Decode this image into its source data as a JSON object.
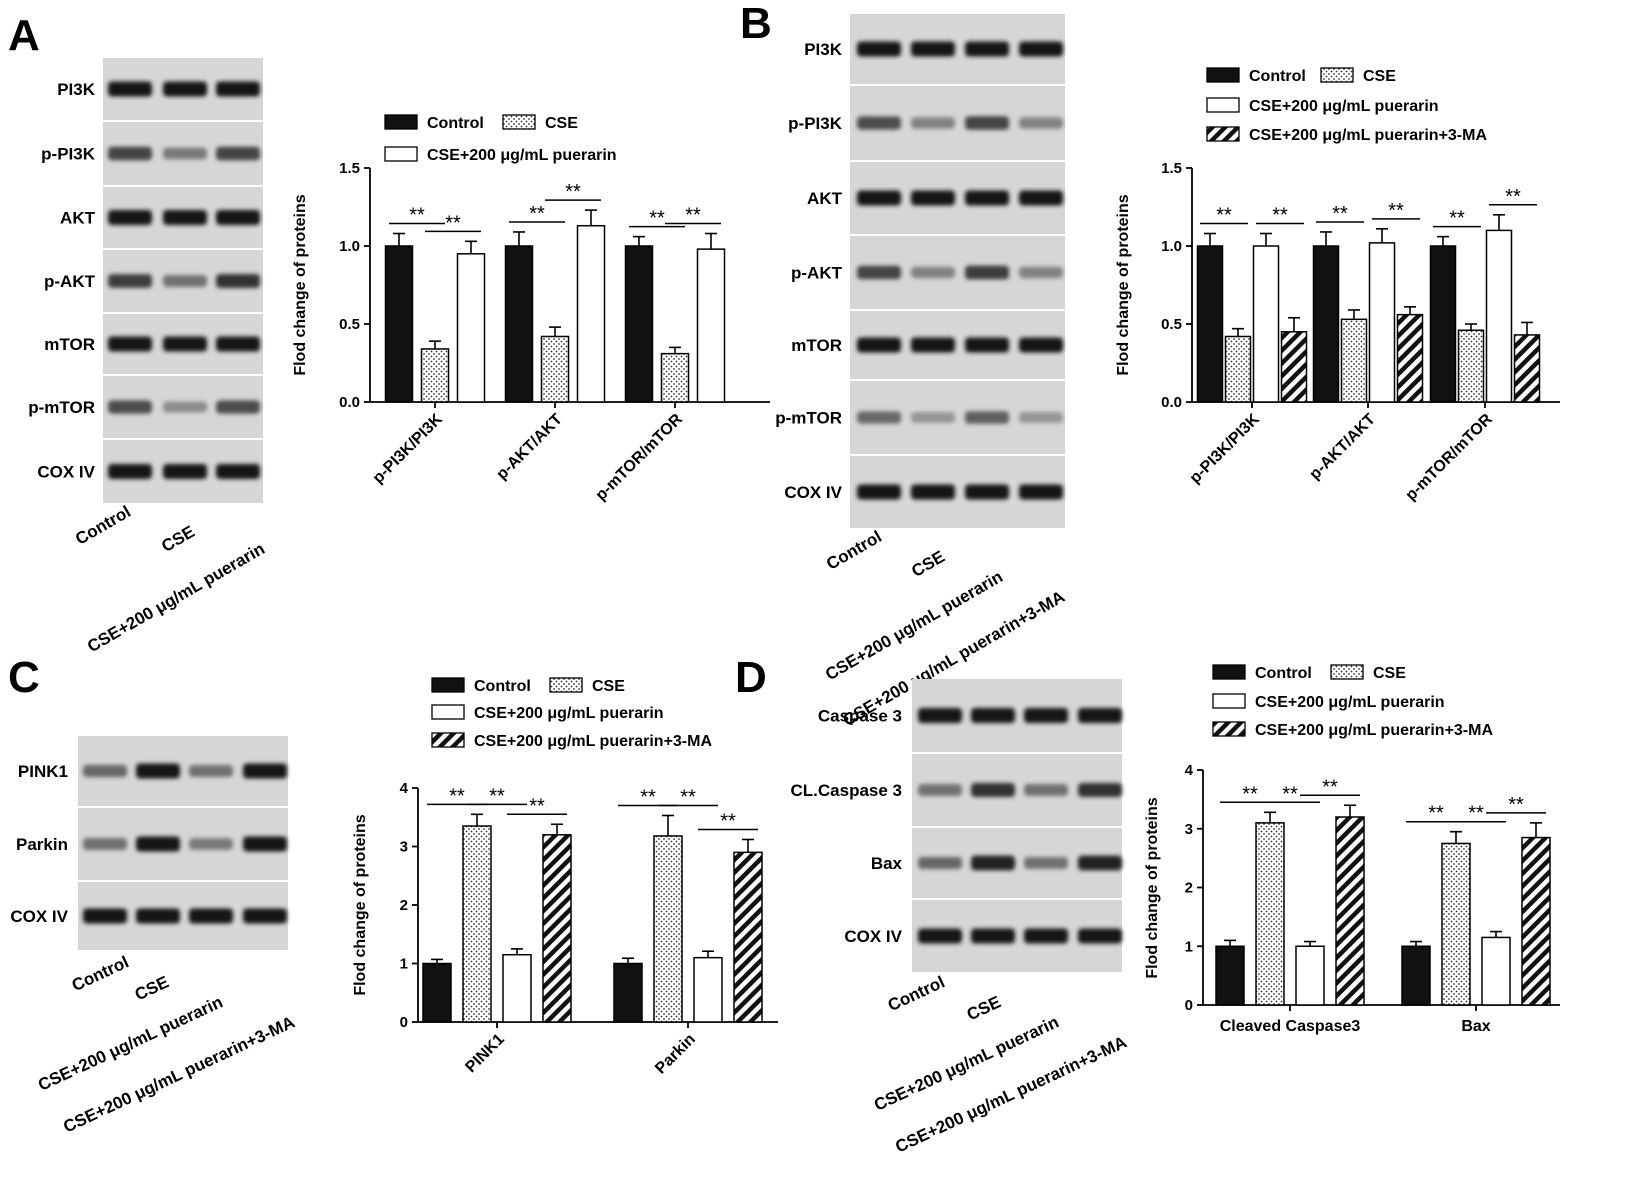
{
  "colors": {
    "control": "#111111",
    "cse": "#ffffff",
    "puerarin": "#ffffff",
    "puerarin_3ma": "#ffffff",
    "axis": "#000000",
    "blot_bg": "#d6d6d6",
    "band": "#1f1f1f"
  },
  "panels": [
    {
      "id": "A",
      "letter": "A",
      "blot": {
        "proteins": [
          "PI3K",
          "p-PI3K",
          "AKT",
          "p-AKT",
          "mTOR",
          "p-mTOR",
          "COX IV"
        ],
        "lanes": [
          "Control",
          "CSE",
          "CSE+200 μg/mL puerarin"
        ],
        "intensities": [
          [
            1,
            1,
            1
          ],
          [
            0.75,
            0.45,
            0.75
          ],
          [
            1,
            1,
            1
          ],
          [
            0.8,
            0.5,
            0.85
          ],
          [
            1,
            1,
            1
          ],
          [
            0.7,
            0.35,
            0.7
          ],
          [
            1,
            1,
            1
          ]
        ]
      },
      "legend": [
        "Control",
        "CSE",
        "CSE+200 μg/mL puerarin"
      ],
      "chart_data": {
        "type": "bar",
        "ylabel": "Flod change of  proteins",
        "ylim": [
          0,
          1.5
        ],
        "yticks": [
          "0.0",
          "0.5",
          "1.0",
          "1.5"
        ],
        "categories": [
          "p-PI3K/PI3K",
          "p-AKT/AKT",
          "p-mTOR/mTOR"
        ],
        "series": [
          {
            "name": "Control",
            "pattern": "solid",
            "values": [
              1.0,
              1.0,
              1.0
            ],
            "errors": [
              0.08,
              0.09,
              0.06
            ]
          },
          {
            "name": "CSE",
            "pattern": "dots",
            "values": [
              0.34,
              0.42,
              0.31
            ],
            "errors": [
              0.05,
              0.06,
              0.04
            ]
          },
          {
            "name": "CSE+200 μg/mL puerarin",
            "pattern": "open",
            "values": [
              0.95,
              1.13,
              0.98
            ],
            "errors": [
              0.08,
              0.1,
              0.1
            ]
          }
        ],
        "significance": [
          {
            "category": 0,
            "from": 0,
            "to": 1,
            "label": "**"
          },
          {
            "category": 0,
            "from": 1,
            "to": 2,
            "label": "**"
          },
          {
            "category": 1,
            "from": 0,
            "to": 1,
            "label": "**"
          },
          {
            "category": 1,
            "from": 1,
            "to": 2,
            "label": "**"
          },
          {
            "category": 2,
            "from": 0,
            "to": 1,
            "label": "**"
          },
          {
            "category": 2,
            "from": 1,
            "to": 2,
            "label": "**"
          }
        ]
      }
    },
    {
      "id": "B",
      "letter": "B",
      "blot": {
        "proteins": [
          "PI3K",
          "p-PI3K",
          "AKT",
          "p-AKT",
          "mTOR",
          "p-mTOR",
          "COX IV"
        ],
        "lanes": [
          "Control",
          "CSE",
          "CSE+200 μg/mL puerarin",
          "CSE+200 μg/mL puerarin+3-MA"
        ],
        "intensities": [
          [
            1,
            1,
            1,
            1
          ],
          [
            0.7,
            0.4,
            0.75,
            0.4
          ],
          [
            1,
            1,
            1,
            1
          ],
          [
            0.75,
            0.4,
            0.8,
            0.4
          ],
          [
            1,
            1,
            1,
            1
          ],
          [
            0.55,
            0.3,
            0.6,
            0.3
          ],
          [
            1,
            1,
            1,
            1
          ]
        ]
      },
      "legend": [
        "Control",
        "CSE",
        "CSE+200 μg/mL puerarin",
        "CSE+200 μg/mL puerarin+3-MA"
      ],
      "chart_data": {
        "type": "bar",
        "ylabel": "Flod change of  proteins",
        "ylim": [
          0,
          1.5
        ],
        "yticks": [
          "0.0",
          "0.5",
          "1.0",
          "1.5"
        ],
        "categories": [
          "p-PI3K/PI3K",
          "p-AKT/AKT",
          "p-mTOR/mTOR"
        ],
        "series": [
          {
            "name": "Control",
            "pattern": "solid",
            "values": [
              1.0,
              1.0,
              1.0
            ],
            "errors": [
              0.08,
              0.09,
              0.06
            ]
          },
          {
            "name": "CSE",
            "pattern": "dots",
            "values": [
              0.42,
              0.53,
              0.46
            ],
            "errors": [
              0.05,
              0.06,
              0.04
            ]
          },
          {
            "name": "CSE+200 μg/mL puerarin",
            "pattern": "open",
            "values": [
              1.0,
              1.02,
              1.1
            ],
            "errors": [
              0.08,
              0.09,
              0.1
            ]
          },
          {
            "name": "CSE+200 μg/mL puerarin+3-MA",
            "pattern": "hatch",
            "values": [
              0.45,
              0.56,
              0.43
            ],
            "errors": [
              0.09,
              0.05,
              0.08
            ]
          }
        ],
        "significance": [
          {
            "category": 0,
            "from": 0,
            "to": 1,
            "label": "**"
          },
          {
            "category": 0,
            "from": 2,
            "to": 3,
            "label": "**"
          },
          {
            "category": 1,
            "from": 0,
            "to": 1,
            "label": "**"
          },
          {
            "category": 1,
            "from": 2,
            "to": 3,
            "label": "**"
          },
          {
            "category": 2,
            "from": 0,
            "to": 1,
            "label": "**"
          },
          {
            "category": 2,
            "from": 2,
            "to": 3,
            "label": "**"
          }
        ]
      }
    },
    {
      "id": "C",
      "letter": "C",
      "blot": {
        "proteins": [
          "PINK1",
          "Parkin",
          "COX IV"
        ],
        "lanes": [
          "Control",
          "CSE",
          "CSE+200 μg/mL puerarin",
          "CSE+200 μg/mL puerarin+3-MA"
        ],
        "intensities": [
          [
            0.55,
            1,
            0.5,
            1
          ],
          [
            0.5,
            1,
            0.45,
            1
          ],
          [
            1,
            1,
            1,
            1
          ]
        ]
      },
      "legend": [
        "Control",
        "CSE",
        "CSE+200 μg/mL puerarin",
        "CSE+200 μg/mL puerarin+3-MA"
      ],
      "chart_data": {
        "type": "bar",
        "ylabel": "Flod change of  proteins",
        "ylim": [
          0,
          4
        ],
        "yticks": [
          "0",
          "1",
          "2",
          "3",
          "4"
        ],
        "categories": [
          "PINK1",
          "Parkin"
        ],
        "series": [
          {
            "name": "Control",
            "pattern": "solid",
            "values": [
              1.0,
              1.0
            ],
            "errors": [
              0.07,
              0.09
            ]
          },
          {
            "name": "CSE",
            "pattern": "dots",
            "values": [
              3.35,
              3.18
            ],
            "errors": [
              0.2,
              0.35
            ]
          },
          {
            "name": "CSE+200 μg/mL puerarin",
            "pattern": "open",
            "values": [
              1.15,
              1.1
            ],
            "errors": [
              0.1,
              0.11
            ]
          },
          {
            "name": "CSE+200 μg/mL puerarin+3-MA",
            "pattern": "hatch",
            "values": [
              3.2,
              2.9
            ],
            "errors": [
              0.18,
              0.22
            ]
          }
        ],
        "significance": [
          {
            "category": 0,
            "from": 0,
            "to": 1,
            "label": "**"
          },
          {
            "category": 0,
            "from": 1,
            "to": 2,
            "label": "**"
          },
          {
            "category": 0,
            "from": 2,
            "to": 3,
            "label": "**"
          },
          {
            "category": 1,
            "from": 0,
            "to": 1,
            "label": "**"
          },
          {
            "category": 1,
            "from": 1,
            "to": 2,
            "label": "**"
          },
          {
            "category": 1,
            "from": 2,
            "to": 3,
            "label": "**"
          }
        ]
      }
    },
    {
      "id": "D",
      "letter": "D",
      "blot": {
        "proteins": [
          "Caspase 3",
          "CL.Caspase 3",
          "Bax",
          "COX IV"
        ],
        "lanes": [
          "Control",
          "CSE",
          "CSE+200 μg/mL puerarin",
          "CSE+200 μg/mL puerarin+3-MA"
        ],
        "intensities": [
          [
            1,
            1,
            1,
            1
          ],
          [
            0.5,
            0.85,
            0.5,
            0.85
          ],
          [
            0.55,
            0.95,
            0.5,
            0.95
          ],
          [
            1,
            1,
            1,
            1
          ]
        ]
      },
      "legend": [
        "Control",
        "CSE",
        "CSE+200 μg/mL puerarin",
        "CSE+200 μg/mL puerarin+3-MA"
      ],
      "chart_data": {
        "type": "bar",
        "ylabel": "Flod change of proteins",
        "ylim": [
          0,
          4
        ],
        "yticks": [
          "0",
          "1",
          "2",
          "3",
          "4"
        ],
        "categories": [
          "Cleaved Caspase3",
          "Bax"
        ],
        "series": [
          {
            "name": "Control",
            "pattern": "solid",
            "values": [
              1.0,
              1.0
            ],
            "errors": [
              0.1,
              0.08
            ]
          },
          {
            "name": "CSE",
            "pattern": "dots",
            "values": [
              3.1,
              2.75
            ],
            "errors": [
              0.18,
              0.2
            ]
          },
          {
            "name": "CSE+200 μg/mL puerarin",
            "pattern": "open",
            "values": [
              1.0,
              1.15
            ],
            "errors": [
              0.08,
              0.1
            ]
          },
          {
            "name": "CSE+200 μg/mL puerarin+3-MA",
            "pattern": "hatch",
            "values": [
              3.2,
              2.85
            ],
            "errors": [
              0.2,
              0.25
            ]
          }
        ],
        "significance": [
          {
            "category": 0,
            "from": 0,
            "to": 1,
            "label": "**"
          },
          {
            "category": 0,
            "from": 1,
            "to": 2,
            "label": "**"
          },
          {
            "category": 0,
            "from": 2,
            "to": 3,
            "label": "**"
          },
          {
            "category": 1,
            "from": 0,
            "to": 1,
            "label": "**"
          },
          {
            "category": 1,
            "from": 1,
            "to": 2,
            "label": "**"
          },
          {
            "category": 1,
            "from": 2,
            "to": 3,
            "label": "**"
          }
        ]
      }
    }
  ]
}
